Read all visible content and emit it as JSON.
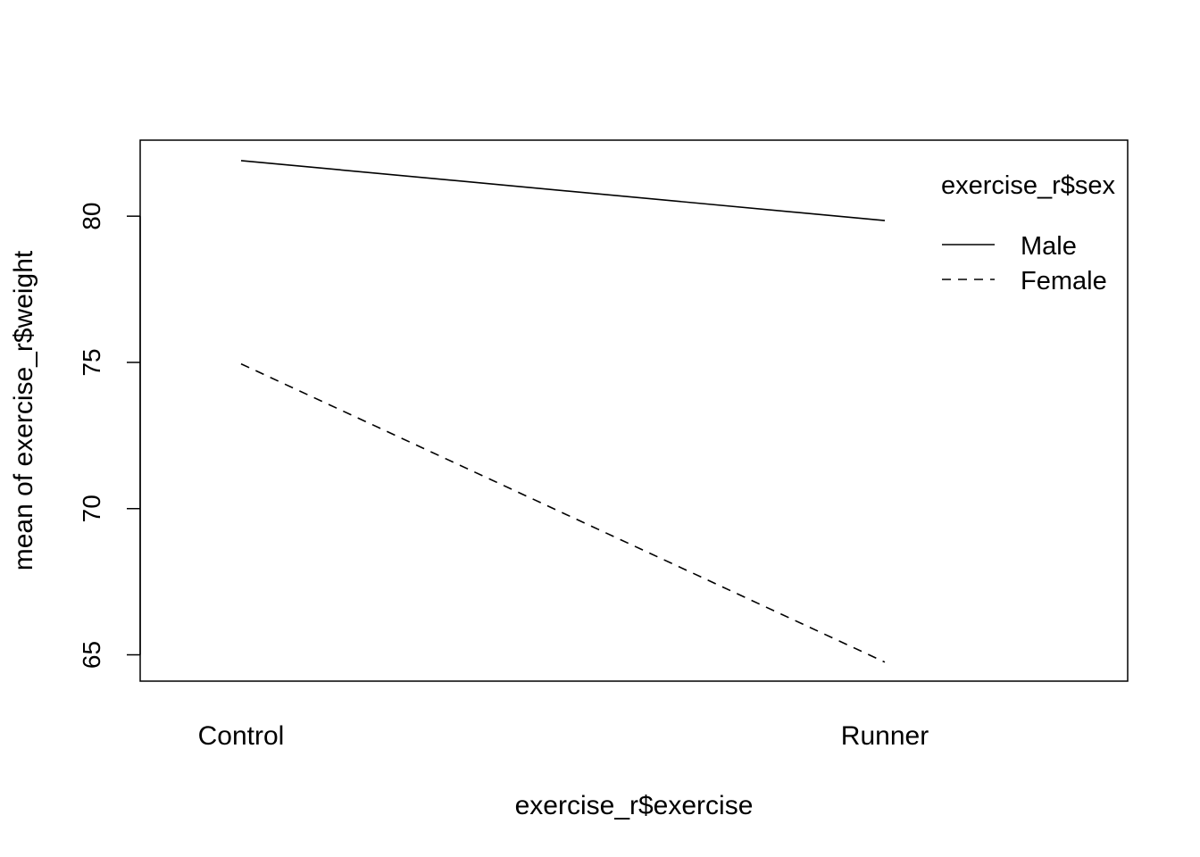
{
  "chart_data": {
    "type": "line",
    "title": "",
    "xlabel": "exercise_r$exercise",
    "ylabel": "mean of  exercise_r$weight",
    "categories": [
      "Control",
      "Runner"
    ],
    "ylim": [
      64.1,
      82.6
    ],
    "yticks": [
      65,
      70,
      75,
      80
    ],
    "grid": false,
    "legend": {
      "title": "exercise_r$sex",
      "placement": "top-right"
    },
    "series": [
      {
        "name": "Male",
        "values": [
          81.9,
          79.85
        ],
        "line_style": "solid",
        "color": "#000000"
      },
      {
        "name": "Female",
        "values": [
          74.95,
          64.75
        ],
        "line_style": "dashed",
        "color": "#000000"
      }
    ]
  }
}
